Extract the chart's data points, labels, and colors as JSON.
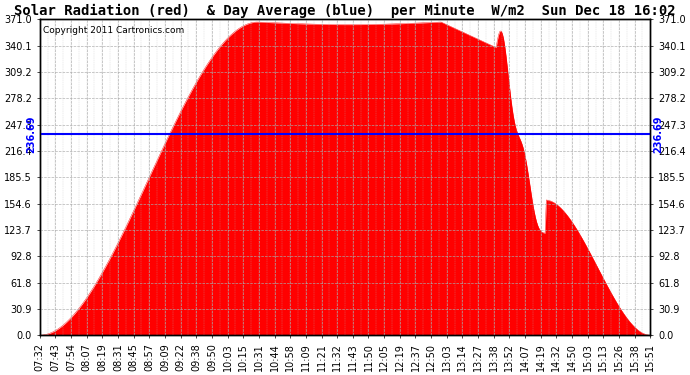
{
  "title": "Solar Radiation (red)  & Day Average (blue)  per Minute  W/m2  Sun Dec 18 16:02",
  "copyright": "Copyright 2011 Cartronics.com",
  "y_max": 371.0,
  "y_min": 0.0,
  "y_ticks": [
    0.0,
    30.9,
    61.8,
    92.8,
    123.7,
    154.6,
    185.5,
    216.4,
    247.3,
    278.2,
    309.2,
    340.1,
    371.0
  ],
  "day_average": 236.69,
  "fill_color": "#ff0000",
  "avg_line_color": "blue",
  "background_color": "#ffffff",
  "x_labels": [
    "07:32",
    "07:43",
    "07:54",
    "08:07",
    "08:19",
    "08:31",
    "08:45",
    "08:57",
    "09:09",
    "09:22",
    "09:38",
    "09:50",
    "10:03",
    "10:15",
    "10:31",
    "10:44",
    "10:58",
    "11:09",
    "11:21",
    "11:32",
    "11:43",
    "11:50",
    "12:05",
    "12:19",
    "12:37",
    "12:50",
    "13:03",
    "13:14",
    "13:27",
    "13:38",
    "13:52",
    "14:07",
    "14:19",
    "14:32",
    "14:50",
    "15:03",
    "15:13",
    "15:26",
    "15:38",
    "15:51"
  ],
  "title_fontsize": 10,
  "tick_fontsize": 7,
  "copyright_fontsize": 6.5
}
